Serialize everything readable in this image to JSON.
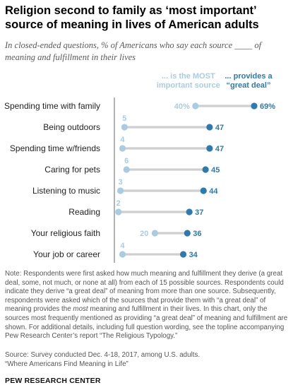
{
  "title": "Religion second to family as ‘most important’ source of meaning in lives of American adults",
  "subtitle": "In closed-ended questions, % of Americans who say each source ____ of meaning and fulfillment in their lives",
  "note": {
    "pre": "Note: Respondents were first asked how much meaning and fulfillment they derive (a great deal, some, not much, or none at all) from each of 15 possible sources. Respondents could indicate they derive “a great deal” of meaning from more than one source. Subsequently, respondents were asked which of the sources that provide them with “a great deal” of meaning provides the ",
    "em": "most",
    "post": " meaning and fulfillment in their lives. In this chart, only the sources most frequently mentioned as providing “a great deal” of meaning and fulfillment are shown. For additional details, including full question wording, see the topline accompanying Pew Research Center’s report “The Religious Typology.”"
  },
  "source_line1": "Source: Survey conducted Dec. 4-18, 2017, among U.S. adults.",
  "source_line2": "“Where Americans Find Meaning in Life”",
  "brand": "PEW RESEARCH CENTER",
  "colors": {
    "most": "#a9cce3",
    "great": "#2b7bb0",
    "connector": "#cfcfcf",
    "axis": "#9a9a9a"
  },
  "chart_data": {
    "type": "dot",
    "categories": [
      "Spending time with family",
      "Being outdoors",
      "Spending time w/friends",
      "Caring for pets",
      "Listening to music",
      "Reading",
      "Your religious faith",
      "Your job or career"
    ],
    "series": [
      {
        "name": "... is the MOST important source",
        "values": [
          40,
          5,
          4,
          6,
          3,
          2,
          20,
          4
        ]
      },
      {
        "name": "... provides a “great deal”",
        "values": [
          69,
          47,
          47,
          45,
          44,
          37,
          36,
          34
        ]
      }
    ],
    "value_labels": {
      "most": [
        "40%",
        "5",
        "4",
        "6",
        "3",
        "2",
        "20",
        "4"
      ],
      "great": [
        "69%",
        "47",
        "47",
        "45",
        "44",
        "37",
        "36",
        "34"
      ]
    },
    "legend": {
      "most": [
        "... is the MOST",
        "important source"
      ],
      "great": [
        "... provides a",
        "“great deal”"
      ]
    },
    "xlim": [
      0,
      69
    ]
  }
}
